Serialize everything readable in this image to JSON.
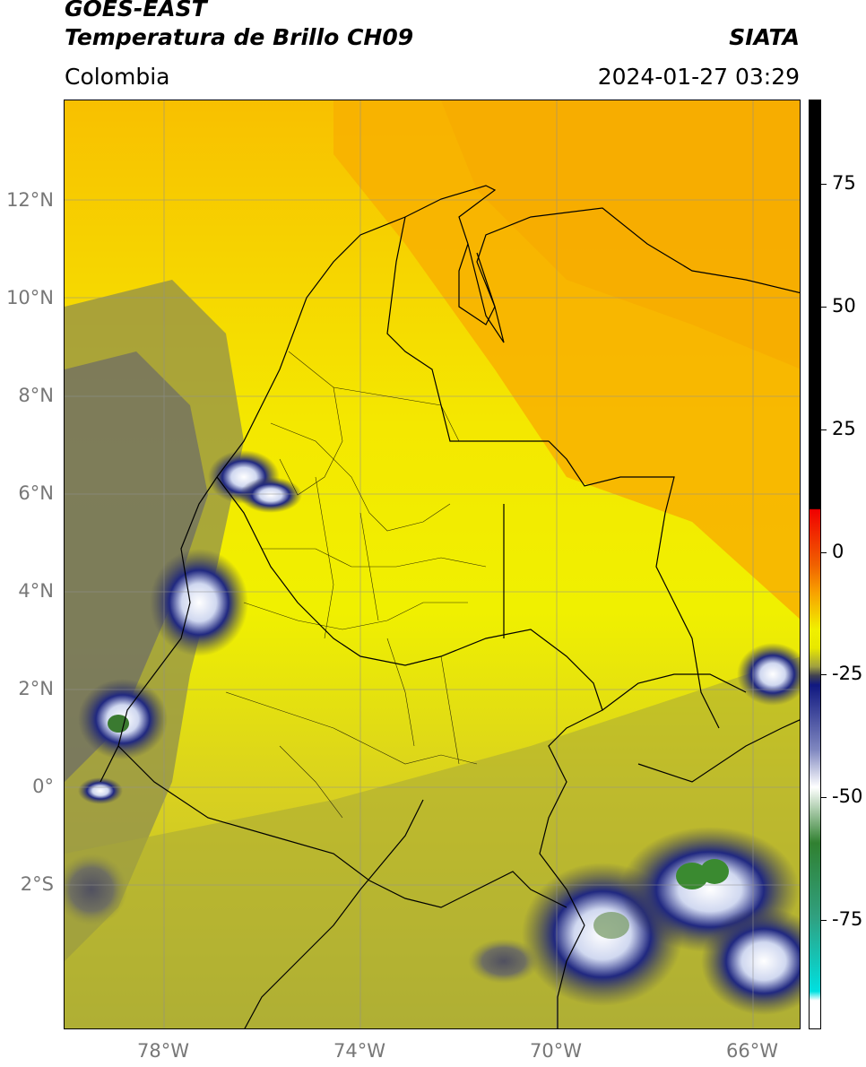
{
  "header": {
    "satellite": "GOES-EAST",
    "product": "Temperatura de Brillo CH09",
    "org": "SIATA",
    "region": "Colombia",
    "datetime": "2024-01-27 03:29"
  },
  "map": {
    "lat_labels": [
      "12°N",
      "10°N",
      "8°N",
      "6°N",
      "4°N",
      "2°N",
      "0°",
      "2°S"
    ],
    "lon_labels": [
      "78°W",
      "74°W",
      "70°W",
      "66°W"
    ],
    "grid": true,
    "background_color": "#f4f000",
    "warm_color": "#f8b000",
    "cold_color": "#101880"
  },
  "colorbar": {
    "labels": [
      "75",
      "50",
      "25",
      "0",
      "-25",
      "-50",
      "-75"
    ],
    "colors": [
      "#000000",
      "#e00000",
      "#f8a000",
      "#f0f000",
      "#404040",
      "#101880",
      "#ffffff",
      "#308030",
      "#00e0e0"
    ]
  }
}
